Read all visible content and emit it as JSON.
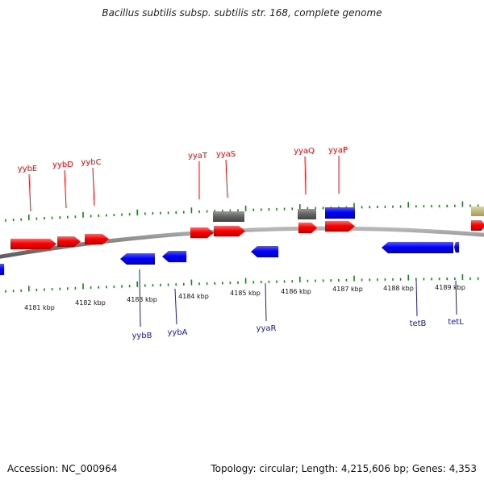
{
  "title": "Bacillus subtilis subsp. subtilis str. 168, complete genome",
  "footer": {
    "accession": "Accession: NC_000964",
    "summary": "Topology: circular; Length: 4,215,606 bp; Genes: 4,353"
  },
  "colors": {
    "forward_gene": "#ff0000",
    "reverse_gene": "#0000ff",
    "rna_gene": "#666666",
    "misc_feature": "#bdb47a",
    "backbone": "#808080",
    "tick": "#118811",
    "top_label": "#ff0000",
    "bottom_label": "#1a1aa0"
  },
  "ruler": {
    "unit_labels": [
      "4181 kbp",
      "4182 kbp",
      "4183 kbp",
      "4184 kbp",
      "4185 kbp",
      "4186 kbp",
      "4187 kbp",
      "4188 kbp",
      "4189 kbp"
    ]
  },
  "top_gene_labels": [
    "yybE",
    "yybD",
    "yybC",
    "yyaT",
    "yyaS",
    "yyaQ",
    "yyaP"
  ],
  "bottom_gene_labels": [
    "yybB",
    "yybA",
    "yyaR",
    "tetB",
    "tetL"
  ]
}
